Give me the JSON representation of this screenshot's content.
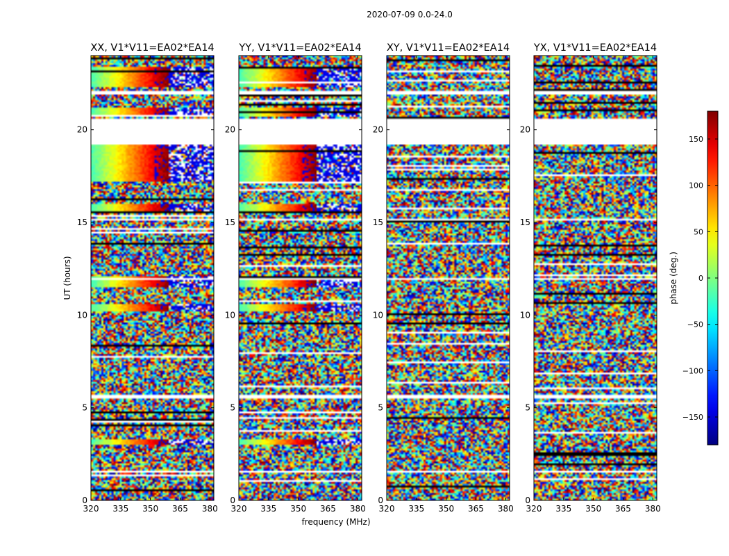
{
  "chart_data": {
    "type": "heatmap",
    "suptitle": "2020-07-09 0.0-24.0",
    "xlabel": "frequency (MHz)",
    "ylabel": "UT (hours)",
    "x_range": [
      320,
      382
    ],
    "y_range": [
      0,
      24
    ],
    "x_ticks": [
      "320",
      "335",
      "350",
      "365",
      "380"
    ],
    "x_tick_values": [
      320,
      335,
      350,
      365,
      380
    ],
    "y_ticks": [
      "0",
      "5",
      "10",
      "15",
      "20"
    ],
    "y_tick_values": [
      0,
      5,
      10,
      15,
      20
    ],
    "panels": [
      {
        "title": "XX, V1*V11=EA02*EA14",
        "coherent": true
      },
      {
        "title": "YY, V1*V11=EA02*EA14",
        "coherent": true
      },
      {
        "title": "XY, V1*V11=EA02*EA14",
        "coherent": false
      },
      {
        "title": "YX, V1*V11=EA02*EA14",
        "coherent": false
      }
    ],
    "gap_rows_hours": [
      [
        19.2,
        20.6
      ],
      [
        21.9,
        22.1
      ],
      [
        1.5,
        1.6
      ],
      [
        5.5,
        5.7
      ],
      [
        11.9,
        12.0
      ],
      [
        15.1,
        15.2
      ]
    ],
    "coherent_bands_hours": [
      [
        22.3,
        23.4
      ],
      [
        20.7,
        21.2
      ],
      [
        17.2,
        19.3
      ],
      [
        15.5,
        16.0
      ],
      [
        11.5,
        12.1
      ],
      [
        10.2,
        10.6
      ],
      [
        3.0,
        3.3
      ]
    ],
    "colorbar": {
      "label": "phase (deg.)",
      "range": [
        -180,
        180
      ],
      "ticks": [
        "150",
        "100",
        "50",
        "0",
        "−50",
        "−100",
        "−150"
      ],
      "tick_values": [
        150,
        100,
        50,
        0,
        -50,
        -100,
        -150
      ],
      "colormap": "jet"
    }
  }
}
